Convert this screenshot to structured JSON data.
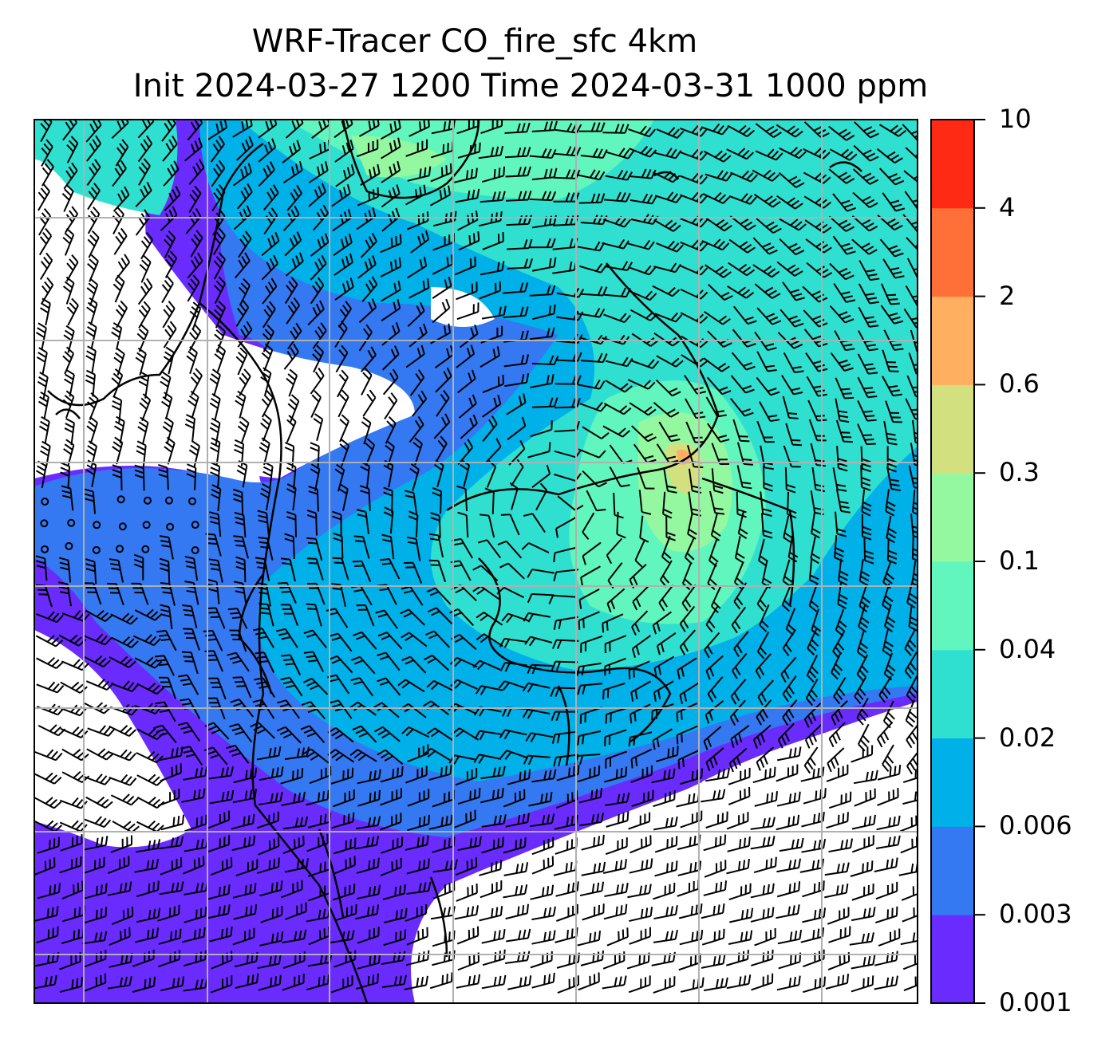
{
  "title_line1": "WRF-Tracer CO_fire_sfc 4km",
  "title_line2": "Init 2024-03-27 1200 Time 2024-03-31 1000 ppm",
  "colorbar": {
    "levels": [
      "0.001",
      "0.003",
      "0.006",
      "0.02",
      "0.04",
      "0.1",
      "0.3",
      "0.6",
      "2",
      "4",
      "10"
    ],
    "colors": [
      "#6a2bff",
      "#3478f2",
      "#00b0e8",
      "#2fe0d0",
      "#60f6bd",
      "#93f8a0",
      "#d2e080",
      "#ffaf5f",
      "#ff6f38",
      "#ff2a14"
    ]
  },
  "map_colors": {
    "no_data": "#ffffff",
    "gridline": "#b0b0b0",
    "coastline": "#000000",
    "wind_barb": "#000000"
  }
}
